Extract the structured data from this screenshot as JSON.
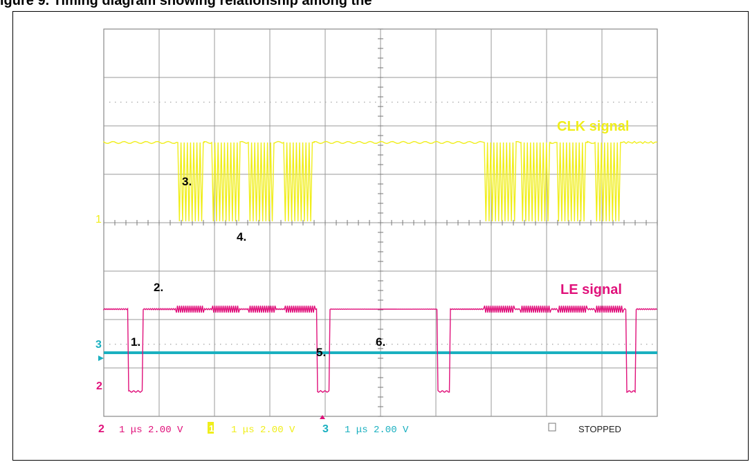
{
  "figure": {
    "caption": "igure 9. Timing diagram showing relationship among the"
  },
  "chart_data": {
    "type": "line",
    "series": [
      {
        "name": "CLK signal",
        "color": "#f0ee1a",
        "channel": "1"
      },
      {
        "name": "LE signal",
        "color": "#e0107a",
        "channel": "2"
      },
      {
        "name": "",
        "color": "#1ab0c0",
        "channel": "3"
      }
    ],
    "annotations": [
      "1.",
      "2.",
      "3.",
      "4.",
      "5.",
      "6."
    ],
    "status": {
      "ch2": "1 μs 2.00 V",
      "ch1": "1 μs 2.00 V",
      "ch3": "1 μs 2.00 V",
      "state": "STOPPED"
    },
    "grid": {
      "divisions_x": 10,
      "divisions_y": 8
    }
  }
}
